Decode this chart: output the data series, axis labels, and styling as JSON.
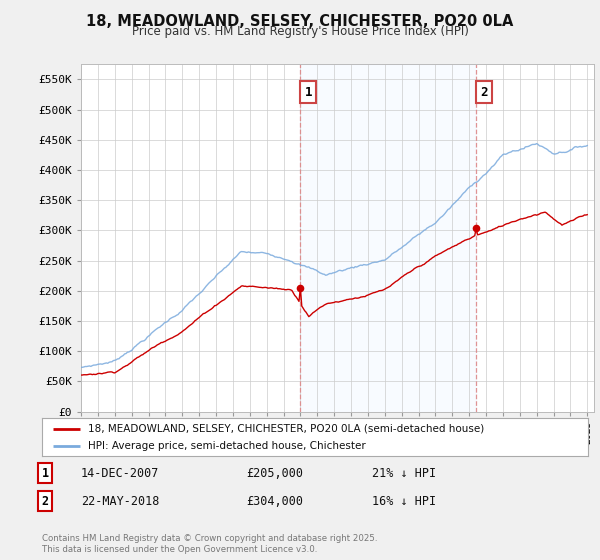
{
  "title_line1": "18, MEADOWLAND, SELSEY, CHICHESTER, PO20 0LA",
  "title_line2": "Price paid vs. HM Land Registry's House Price Index (HPI)",
  "ylim": [
    0,
    575000
  ],
  "yticks": [
    0,
    50000,
    100000,
    150000,
    200000,
    250000,
    300000,
    350000,
    400000,
    450000,
    500000,
    550000
  ],
  "ytick_labels": [
    "£0",
    "£50K",
    "£100K",
    "£150K",
    "£200K",
    "£250K",
    "£300K",
    "£350K",
    "£400K",
    "£450K",
    "£500K",
    "£550K"
  ],
  "x_start_year": 1995,
  "x_end_year": 2025,
  "sale1_year": 2007.96,
  "sale1_price": 205000,
  "sale1_label": "1",
  "sale2_year": 2018.38,
  "sale2_price": 304000,
  "sale2_label": "2",
  "sale1_date": "14-DEC-2007",
  "sale1_amount": "£205,000",
  "sale1_hpi": "21% ↓ HPI",
  "sale2_date": "22-MAY-2018",
  "sale2_amount": "£304,000",
  "sale2_hpi": "16% ↓ HPI",
  "legend_line1": "18, MEADOWLAND, SELSEY, CHICHESTER, PO20 0LA (semi-detached house)",
  "legend_line2": "HPI: Average price, semi-detached house, Chichester",
  "footer": "Contains HM Land Registry data © Crown copyright and database right 2025.\nThis data is licensed under the Open Government Licence v3.0.",
  "line_color_red": "#cc0000",
  "line_color_blue": "#7aaadd",
  "shade_color": "#ddeeff",
  "vline_color": "#dd8888",
  "background_color": "#f0f0f0",
  "plot_bg": "#ffffff"
}
